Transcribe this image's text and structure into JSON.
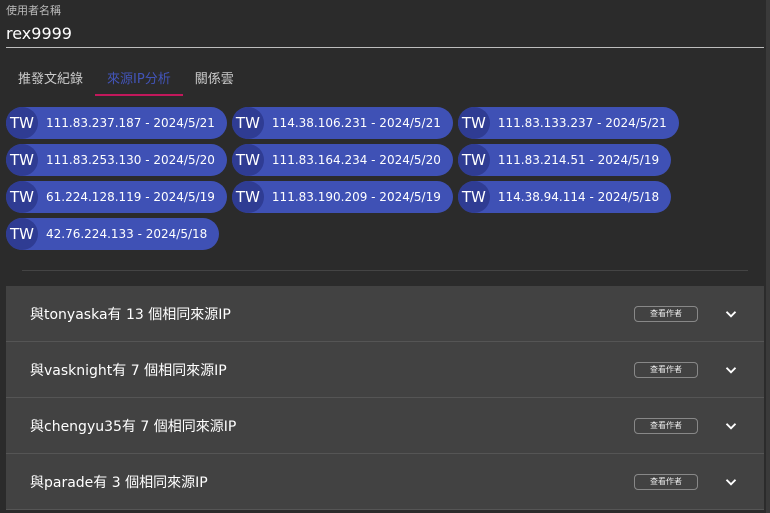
{
  "field": {
    "label": "使用者名稱",
    "value": "rex9999"
  },
  "tabs": [
    {
      "label": "推發文紀錄"
    },
    {
      "label": "來源IP分析",
      "active": true
    },
    {
      "label": "關係雲"
    }
  ],
  "chips": [
    {
      "country": "TW",
      "text": "111.83.237.187 - 2024/5/21"
    },
    {
      "country": "TW",
      "text": "114.38.106.231 - 2024/5/21"
    },
    {
      "country": "TW",
      "text": "111.83.133.237 - 2024/5/21"
    },
    {
      "country": "TW",
      "text": "111.83.253.130 - 2024/5/20"
    },
    {
      "country": "TW",
      "text": "111.83.164.234 - 2024/5/20"
    },
    {
      "country": "TW",
      "text": "111.83.214.51 - 2024/5/19"
    },
    {
      "country": "TW",
      "text": "61.224.128.119 - 2024/5/19"
    },
    {
      "country": "TW",
      "text": "111.83.190.209 - 2024/5/19"
    },
    {
      "country": "TW",
      "text": "114.38.94.114 - 2024/5/18"
    },
    {
      "country": "TW",
      "text": "42.76.224.133 - 2024/5/18"
    }
  ],
  "panels": [
    {
      "title": "與tonyaska有 13 個相同來源IP",
      "button": "查看作者"
    },
    {
      "title": "與vasknight有 7 個相同來源IP",
      "button": "查看作者"
    },
    {
      "title": "與chengyu35有 7 個相同來源IP",
      "button": "查看作者"
    },
    {
      "title": "與parade有 3 個相同來源IP",
      "button": "查看作者"
    }
  ],
  "colors": {
    "chip": "#3f51b5",
    "tab_active": "#4254b8",
    "indicator": "#c2185b"
  }
}
